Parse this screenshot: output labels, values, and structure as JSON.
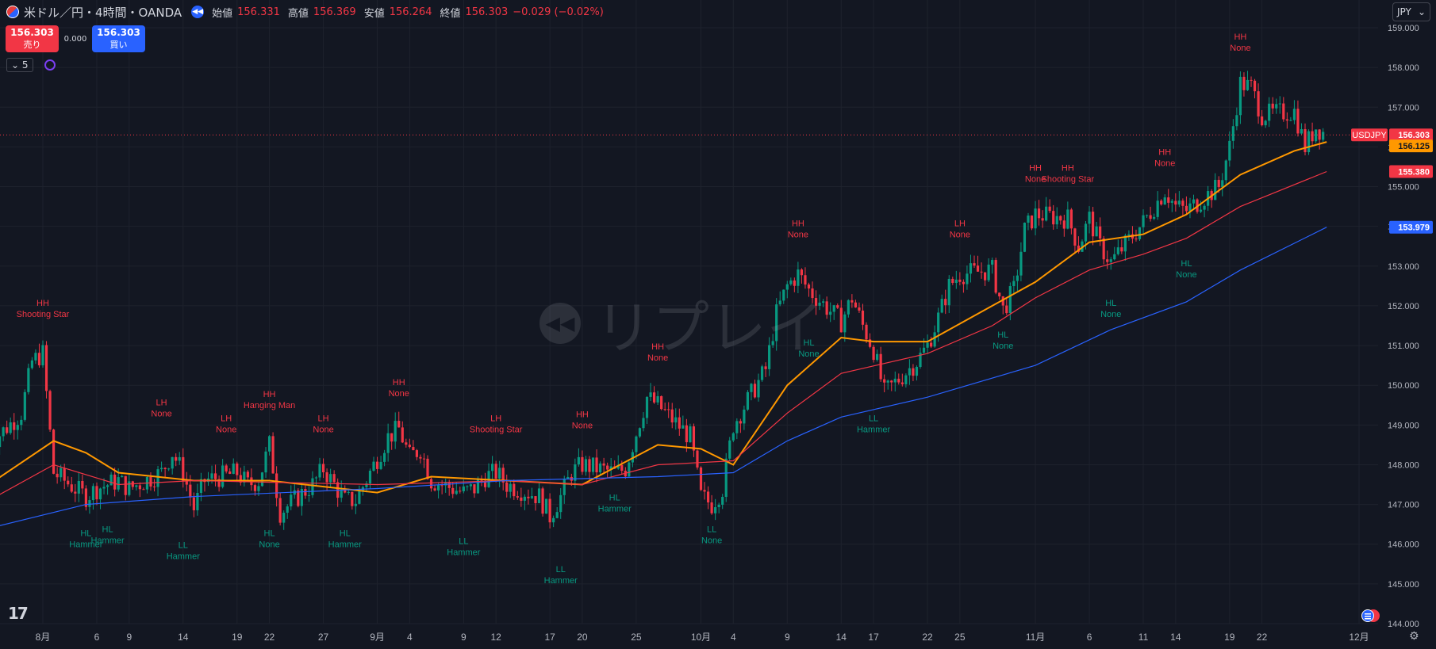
{
  "header": {
    "symbol_title": "米ドル／円・4時間・OANDA",
    "open_label": "始値",
    "open_value": "156.331",
    "high_label": "高値",
    "high_value": "156.369",
    "low_label": "安値",
    "low_value": "156.264",
    "close_label": "終値",
    "close_value": "156.303",
    "change": "−0.029 (−0.02%)"
  },
  "trade_panel": {
    "sell_price": "156.303",
    "sell_label": "売り",
    "spread": "0.000",
    "buy_price": "156.303",
    "buy_label": "買い"
  },
  "indicator_bar": {
    "count": "5"
  },
  "currency_select": "JPY",
  "watermark": "リプレイ",
  "icons": [
    "us-flag-icon",
    "replay-icon",
    "chevron-down-icon",
    "loading-icon",
    "tradingview-logo-icon",
    "flag-icon",
    "gear-icon"
  ],
  "colors": {
    "background": "#131722",
    "grid": "#1e222d",
    "up": "#089981",
    "down": "#f23645",
    "ema_fast": "#ff9800",
    "ema_mid": "#f23645",
    "ema_slow": "#2962ff",
    "label_high": "#f23645",
    "label_low": "#089981"
  },
  "chart_data": {
    "type": "candlestick",
    "title": "米ドル／円・4時間・OANDA",
    "ylim": [
      144.0,
      159.0
    ],
    "y_ticks": [
      "159.000",
      "158.000",
      "157.000",
      "156.000",
      "155.000",
      "154.000",
      "153.000",
      "152.000",
      "151.000",
      "150.000",
      "149.000",
      "148.000",
      "147.000",
      "146.000",
      "145.000",
      "144.000"
    ],
    "x_ticks": [
      {
        "label": "8月",
        "date": "2024-08-01"
      },
      {
        "label": "6",
        "date": "2024-08-06"
      },
      {
        "label": "9",
        "date": "2024-08-09"
      },
      {
        "label": "14",
        "date": "2024-08-14"
      },
      {
        "label": "19",
        "date": "2024-08-19"
      },
      {
        "label": "22",
        "date": "2024-08-22"
      },
      {
        "label": "27",
        "date": "2024-08-27"
      },
      {
        "label": "9月",
        "date": "2024-09-01"
      },
      {
        "label": "4",
        "date": "2024-09-04"
      },
      {
        "label": "9",
        "date": "2024-09-09"
      },
      {
        "label": "12",
        "date": "2024-09-12"
      },
      {
        "label": "17",
        "date": "2024-09-17"
      },
      {
        "label": "20",
        "date": "2024-09-20"
      },
      {
        "label": "25",
        "date": "2024-09-25"
      },
      {
        "label": "10月",
        "date": "2024-10-01"
      },
      {
        "label": "4",
        "date": "2024-10-04"
      },
      {
        "label": "9",
        "date": "2024-10-09"
      },
      {
        "label": "14",
        "date": "2024-10-14"
      },
      {
        "label": "17",
        "date": "2024-10-17"
      },
      {
        "label": "22",
        "date": "2024-10-22"
      },
      {
        "label": "25",
        "date": "2024-10-25"
      },
      {
        "label": "11月",
        "date": "2024-11-01"
      },
      {
        "label": "6",
        "date": "2024-11-06"
      },
      {
        "label": "11",
        "date": "2024-11-11"
      },
      {
        "label": "14",
        "date": "2024-11-14"
      },
      {
        "label": "19",
        "date": "2024-11-19"
      },
      {
        "label": "22",
        "date": "2024-11-22"
      },
      {
        "label": "12月",
        "date": "2024-12-01"
      }
    ],
    "price_path": [
      {
        "date": "2024-07-27",
        "close": 148.5
      },
      {
        "date": "2024-07-30",
        "close": 149.3
      },
      {
        "date": "2024-07-31",
        "close": 150.6
      },
      {
        "date": "2024-08-01",
        "close": 150.8
      },
      {
        "date": "2024-08-02",
        "close": 147.8
      },
      {
        "date": "2024-08-05",
        "close": 147.2
      },
      {
        "date": "2024-08-06",
        "close": 147.4
      },
      {
        "date": "2024-08-08",
        "close": 147.6
      },
      {
        "date": "2024-08-09",
        "close": 147.4
      },
      {
        "date": "2024-08-12",
        "close": 147.8
      },
      {
        "date": "2024-08-13",
        "close": 148.3
      },
      {
        "date": "2024-08-14",
        "close": 147.8
      },
      {
        "date": "2024-08-15",
        "close": 146.9
      },
      {
        "date": "2024-08-16",
        "close": 147.6
      },
      {
        "date": "2024-08-19",
        "close": 147.8
      },
      {
        "date": "2024-08-20",
        "close": 147.5
      },
      {
        "date": "2024-08-21",
        "close": 147.6
      },
      {
        "date": "2024-08-22",
        "close": 148.5
      },
      {
        "date": "2024-08-23",
        "close": 146.8
      },
      {
        "date": "2024-08-26",
        "close": 147.5
      },
      {
        "date": "2024-08-27",
        "close": 147.9
      },
      {
        "date": "2024-08-29",
        "close": 147.1
      },
      {
        "date": "2024-08-30",
        "close": 147.1
      },
      {
        "date": "2024-09-02",
        "close": 148.7
      },
      {
        "date": "2024-09-03",
        "close": 148.9
      },
      {
        "date": "2024-09-04",
        "close": 148.2
      },
      {
        "date": "2024-09-05",
        "close": 148.4
      },
      {
        "date": "2024-09-06",
        "close": 147.6
      },
      {
        "date": "2024-09-09",
        "close": 147.3
      },
      {
        "date": "2024-09-10",
        "close": 147.4
      },
      {
        "date": "2024-09-11",
        "close": 147.7
      },
      {
        "date": "2024-09-12",
        "close": 147.8
      },
      {
        "date": "2024-09-13",
        "close": 147.5
      },
      {
        "date": "2024-09-16",
        "close": 147.2
      },
      {
        "date": "2024-09-17",
        "close": 146.7
      },
      {
        "date": "2024-09-18",
        "close": 147.2
      },
      {
        "date": "2024-09-19",
        "close": 147.8
      },
      {
        "date": "2024-09-20",
        "close": 148.0
      },
      {
        "date": "2024-09-23",
        "close": 147.8
      },
      {
        "date": "2024-09-24",
        "close": 147.9
      },
      {
        "date": "2024-09-25",
        "close": 148.8
      },
      {
        "date": "2024-09-26",
        "close": 149.7
      },
      {
        "date": "2024-09-27",
        "close": 149.5
      },
      {
        "date": "2024-09-30",
        "close": 148.7
      },
      {
        "date": "2024-10-01",
        "close": 147.2
      },
      {
        "date": "2024-10-02",
        "close": 147.0
      },
      {
        "date": "2024-10-03",
        "close": 147.4
      },
      {
        "date": "2024-10-04",
        "close": 149.0
      },
      {
        "date": "2024-10-07",
        "close": 150.4
      },
      {
        "date": "2024-10-08",
        "close": 151.8
      },
      {
        "date": "2024-10-09",
        "close": 152.5
      },
      {
        "date": "2024-10-10",
        "close": 152.8
      },
      {
        "date": "2024-10-11",
        "close": 152.4
      },
      {
        "date": "2024-10-14",
        "close": 151.6
      },
      {
        "date": "2024-10-15",
        "close": 152.2
      },
      {
        "date": "2024-10-16",
        "close": 151.5
      },
      {
        "date": "2024-10-17",
        "close": 150.9
      },
      {
        "date": "2024-10-18",
        "close": 149.8
      },
      {
        "date": "2024-10-21",
        "close": 150.6
      },
      {
        "date": "2024-10-22",
        "close": 151.0
      },
      {
        "date": "2024-10-23",
        "close": 151.7
      },
      {
        "date": "2024-10-24",
        "close": 152.5
      },
      {
        "date": "2024-10-25",
        "close": 152.8
      },
      {
        "date": "2024-10-28",
        "close": 152.9
      },
      {
        "date": "2024-10-29",
        "close": 151.9
      },
      {
        "date": "2024-10-30",
        "close": 152.4
      },
      {
        "date": "2024-10-31",
        "close": 153.9
      },
      {
        "date": "2024-11-01",
        "close": 154.3
      },
      {
        "date": "2024-11-04",
        "close": 154.2
      },
      {
        "date": "2024-11-05",
        "close": 153.5
      },
      {
        "date": "2024-11-06",
        "close": 154.2
      },
      {
        "date": "2024-11-07",
        "close": 153.5
      },
      {
        "date": "2024-11-08",
        "close": 153.1
      },
      {
        "date": "2024-11-11",
        "close": 154.1
      },
      {
        "date": "2024-11-12",
        "close": 154.5
      },
      {
        "date": "2024-11-13",
        "close": 154.9
      },
      {
        "date": "2024-11-14",
        "close": 154.5
      },
      {
        "date": "2024-11-15",
        "close": 154.4
      },
      {
        "date": "2024-11-18",
        "close": 155.0
      },
      {
        "date": "2024-11-19",
        "close": 156.0
      },
      {
        "date": "2024-11-20",
        "close": 157.6
      },
      {
        "date": "2024-11-21",
        "close": 157.5
      },
      {
        "date": "2024-11-22",
        "close": 156.8
      },
      {
        "date": "2024-11-25",
        "close": 156.9
      },
      {
        "date": "2024-11-26",
        "close": 156.0
      },
      {
        "date": "2024-11-27",
        "close": 156.5
      },
      {
        "date": "2024-11-28",
        "close": 156.303
      }
    ],
    "moving_averages": [
      {
        "name": "fast",
        "color": "#ff9800",
        "last": "156.125",
        "points": [
          {
            "date": "2024-07-27",
            "value": 147.5
          },
          {
            "date": "2024-08-02",
            "value": 148.6
          },
          {
            "date": "2024-08-05",
            "value": 148.3
          },
          {
            "date": "2024-08-08",
            "value": 147.8
          },
          {
            "date": "2024-08-15",
            "value": 147.6
          },
          {
            "date": "2024-08-22",
            "value": 147.6
          },
          {
            "date": "2024-09-01",
            "value": 147.3
          },
          {
            "date": "2024-09-06",
            "value": 147.7
          },
          {
            "date": "2024-09-13",
            "value": 147.6
          },
          {
            "date": "2024-09-20",
            "value": 147.5
          },
          {
            "date": "2024-09-27",
            "value": 148.5
          },
          {
            "date": "2024-10-01",
            "value": 148.4
          },
          {
            "date": "2024-10-04",
            "value": 148.0
          },
          {
            "date": "2024-10-09",
            "value": 150.0
          },
          {
            "date": "2024-10-14",
            "value": 151.2
          },
          {
            "date": "2024-10-17",
            "value": 151.1
          },
          {
            "date": "2024-10-22",
            "value": 151.1
          },
          {
            "date": "2024-10-28",
            "value": 152.0
          },
          {
            "date": "2024-11-01",
            "value": 152.6
          },
          {
            "date": "2024-11-06",
            "value": 153.6
          },
          {
            "date": "2024-11-11",
            "value": 153.8
          },
          {
            "date": "2024-11-15",
            "value": 154.3
          },
          {
            "date": "2024-11-20",
            "value": 155.3
          },
          {
            "date": "2024-11-25",
            "value": 155.9
          },
          {
            "date": "2024-11-28",
            "value": 156.125
          }
        ]
      },
      {
        "name": "mid",
        "color": "#f23645",
        "last": "155.380",
        "points": [
          {
            "date": "2024-07-27",
            "value": 147.1
          },
          {
            "date": "2024-08-02",
            "value": 148.0
          },
          {
            "date": "2024-08-08",
            "value": 147.5
          },
          {
            "date": "2024-08-15",
            "value": 147.6
          },
          {
            "date": "2024-09-01",
            "value": 147.5
          },
          {
            "date": "2024-09-13",
            "value": 147.6
          },
          {
            "date": "2024-09-20",
            "value": 147.5
          },
          {
            "date": "2024-09-27",
            "value": 148.0
          },
          {
            "date": "2024-10-04",
            "value": 148.1
          },
          {
            "date": "2024-10-09",
            "value": 149.3
          },
          {
            "date": "2024-10-14",
            "value": 150.3
          },
          {
            "date": "2024-10-22",
            "value": 150.8
          },
          {
            "date": "2024-10-28",
            "value": 151.5
          },
          {
            "date": "2024-11-01",
            "value": 152.2
          },
          {
            "date": "2024-11-06",
            "value": 152.9
          },
          {
            "date": "2024-11-11",
            "value": 153.3
          },
          {
            "date": "2024-11-15",
            "value": 153.7
          },
          {
            "date": "2024-11-20",
            "value": 154.5
          },
          {
            "date": "2024-11-28",
            "value": 155.38
          }
        ]
      },
      {
        "name": "slow",
        "color": "#2962ff",
        "last": "153.979",
        "points": [
          {
            "date": "2024-07-27",
            "value": 146.4
          },
          {
            "date": "2024-08-05",
            "value": 147.0
          },
          {
            "date": "2024-08-15",
            "value": 147.2
          },
          {
            "date": "2024-09-01",
            "value": 147.4
          },
          {
            "date": "2024-09-13",
            "value": 147.6
          },
          {
            "date": "2024-09-27",
            "value": 147.7
          },
          {
            "date": "2024-10-04",
            "value": 147.8
          },
          {
            "date": "2024-10-09",
            "value": 148.6
          },
          {
            "date": "2024-10-14",
            "value": 149.2
          },
          {
            "date": "2024-10-22",
            "value": 149.7
          },
          {
            "date": "2024-11-01",
            "value": 150.5
          },
          {
            "date": "2024-11-08",
            "value": 151.4
          },
          {
            "date": "2024-11-15",
            "value": 152.1
          },
          {
            "date": "2024-11-20",
            "value": 152.9
          },
          {
            "date": "2024-11-28",
            "value": 153.979
          }
        ]
      }
    ],
    "current_price": {
      "symbol": "USDJPY",
      "value": "156.303"
    },
    "annotations": [
      {
        "date": "2024-08-01",
        "price": 152.0,
        "kind": "high",
        "lines": [
          "HH",
          "Shooting Star"
        ]
      },
      {
        "date": "2024-08-05",
        "price": 146.2,
        "kind": "low",
        "lines": [
          "HL",
          "Hammer"
        ]
      },
      {
        "date": "2024-08-07",
        "price": 146.3,
        "kind": "low",
        "lines": [
          "HL",
          "Hammer"
        ]
      },
      {
        "date": "2024-08-12",
        "price": 149.5,
        "kind": "high",
        "lines": [
          "LH",
          "None"
        ]
      },
      {
        "date": "2024-08-14",
        "price": 145.9,
        "kind": "low",
        "lines": [
          "LL",
          "Hammer"
        ]
      },
      {
        "date": "2024-08-18",
        "price": 149.1,
        "kind": "high",
        "lines": [
          "LH",
          "None"
        ]
      },
      {
        "date": "2024-08-22",
        "price": 149.7,
        "kind": "high",
        "lines": [
          "HH",
          "Hanging Man"
        ]
      },
      {
        "date": "2024-08-22",
        "price": 146.2,
        "kind": "low",
        "lines": [
          "HL",
          "None"
        ]
      },
      {
        "date": "2024-08-27",
        "price": 149.1,
        "kind": "high",
        "lines": [
          "LH",
          "None"
        ]
      },
      {
        "date": "2024-08-29",
        "price": 146.2,
        "kind": "low",
        "lines": [
          "HL",
          "Hammer"
        ]
      },
      {
        "date": "2024-09-03",
        "price": 150.0,
        "kind": "high",
        "lines": [
          "HH",
          "None"
        ]
      },
      {
        "date": "2024-09-09",
        "price": 146.0,
        "kind": "low",
        "lines": [
          "LL",
          "Hammer"
        ]
      },
      {
        "date": "2024-09-12",
        "price": 149.1,
        "kind": "high",
        "lines": [
          "LH",
          "Shooting Star"
        ]
      },
      {
        "date": "2024-09-18",
        "price": 145.3,
        "kind": "low",
        "lines": [
          "LL",
          "Hammer"
        ]
      },
      {
        "date": "2024-09-20",
        "price": 149.2,
        "kind": "high",
        "lines": [
          "HH",
          "None"
        ]
      },
      {
        "date": "2024-09-23",
        "price": 147.1,
        "kind": "low",
        "lines": [
          "HL",
          "Hammer"
        ]
      },
      {
        "date": "2024-09-27",
        "price": 150.9,
        "kind": "high",
        "lines": [
          "HH",
          "None"
        ]
      },
      {
        "date": "2024-10-02",
        "price": 146.3,
        "kind": "low",
        "lines": [
          "LL",
          "None"
        ]
      },
      {
        "date": "2024-10-10",
        "price": 154.0,
        "kind": "high",
        "lines": [
          "HH",
          "None"
        ]
      },
      {
        "date": "2024-10-11",
        "price": 151.0,
        "kind": "low",
        "lines": [
          "HL",
          "None"
        ]
      },
      {
        "date": "2024-10-17",
        "price": 149.1,
        "kind": "low",
        "lines": [
          "LL",
          "Hammer"
        ]
      },
      {
        "date": "2024-10-25",
        "price": 154.0,
        "kind": "high",
        "lines": [
          "LH",
          "None"
        ]
      },
      {
        "date": "2024-10-29",
        "price": 151.2,
        "kind": "low",
        "lines": [
          "HL",
          "None"
        ]
      },
      {
        "date": "2024-11-01",
        "price": 155.4,
        "kind": "high",
        "lines": [
          "HH",
          "None"
        ]
      },
      {
        "date": "2024-11-04",
        "price": 155.4,
        "kind": "high",
        "lines": [
          "HH",
          "Shooting Star"
        ]
      },
      {
        "date": "2024-11-08",
        "price": 152.0,
        "kind": "low",
        "lines": [
          "HL",
          "None"
        ]
      },
      {
        "date": "2024-11-13",
        "price": 155.8,
        "kind": "high",
        "lines": [
          "HH",
          "None"
        ]
      },
      {
        "date": "2024-11-15",
        "price": 153.0,
        "kind": "low",
        "lines": [
          "HL",
          "None"
        ]
      },
      {
        "date": "2024-11-20",
        "price": 158.7,
        "kind": "high",
        "lines": [
          "HH",
          "None"
        ]
      }
    ]
  }
}
